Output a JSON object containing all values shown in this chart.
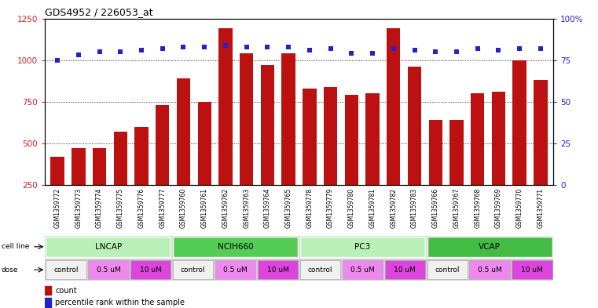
{
  "title": "GDS4952 / 226053_at",
  "samples": [
    "GSM1359772",
    "GSM1359773",
    "GSM1359774",
    "GSM1359775",
    "GSM1359776",
    "GSM1359777",
    "GSM1359760",
    "GSM1359761",
    "GSM1359762",
    "GSM1359763",
    "GSM1359764",
    "GSM1359765",
    "GSM1359778",
    "GSM1359779",
    "GSM1359780",
    "GSM1359781",
    "GSM1359782",
    "GSM1359783",
    "GSM1359766",
    "GSM1359767",
    "GSM1359768",
    "GSM1359769",
    "GSM1359770",
    "GSM1359771"
  ],
  "counts": [
    420,
    470,
    470,
    570,
    600,
    730,
    890,
    750,
    1190,
    1040,
    970,
    1040,
    830,
    840,
    790,
    800,
    1190,
    960,
    640,
    640,
    800,
    810,
    1000,
    880
  ],
  "percentiles": [
    75,
    78,
    80,
    80,
    81,
    82,
    83,
    83,
    84,
    83,
    83,
    83,
    81,
    82,
    79,
    79,
    82,
    81,
    80,
    80,
    82,
    81,
    82,
    82
  ],
  "cell_lines": [
    {
      "name": "LNCAP",
      "start": 0,
      "end": 6,
      "color": "#b8f0b8"
    },
    {
      "name": "NCIH660",
      "start": 6,
      "end": 12,
      "color": "#55cc55"
    },
    {
      "name": "PC3",
      "start": 12,
      "end": 18,
      "color": "#b8f0b8"
    },
    {
      "name": "VCAP",
      "start": 18,
      "end": 24,
      "color": "#44bb44"
    }
  ],
  "doses": [
    {
      "name": "control",
      "start": 0,
      "end": 2,
      "color": "#f0f0f0"
    },
    {
      "name": "0.5 uM",
      "start": 2,
      "end": 4,
      "color": "#ee88ee"
    },
    {
      "name": "10 uM",
      "start": 4,
      "end": 6,
      "color": "#dd44dd"
    },
    {
      "name": "control",
      "start": 6,
      "end": 8,
      "color": "#f0f0f0"
    },
    {
      "name": "0.5 uM",
      "start": 8,
      "end": 10,
      "color": "#ee88ee"
    },
    {
      "name": "10 uM",
      "start": 10,
      "end": 12,
      "color": "#dd44dd"
    },
    {
      "name": "control",
      "start": 12,
      "end": 14,
      "color": "#f0f0f0"
    },
    {
      "name": "0.5 uM",
      "start": 14,
      "end": 16,
      "color": "#ee88ee"
    },
    {
      "name": "10 uM",
      "start": 16,
      "end": 18,
      "color": "#dd44dd"
    },
    {
      "name": "control",
      "start": 18,
      "end": 20,
      "color": "#f0f0f0"
    },
    {
      "name": "0.5 uM",
      "start": 20,
      "end": 22,
      "color": "#ee88ee"
    },
    {
      "name": "10 uM",
      "start": 22,
      "end": 24,
      "color": "#dd44dd"
    }
  ],
  "ylim_left": [
    250,
    1250
  ],
  "ylim_right": [
    0,
    100
  ],
  "yticks_left": [
    250,
    500,
    750,
    1000,
    1250
  ],
  "yticks_right": [
    0,
    25,
    50,
    75,
    100
  ],
  "grid_vals": [
    500,
    750,
    1000
  ],
  "bar_color": "#bb1111",
  "dot_color": "#2222cc",
  "label_bg_color": "#d0d0d0",
  "background_color": "#ffffff"
}
